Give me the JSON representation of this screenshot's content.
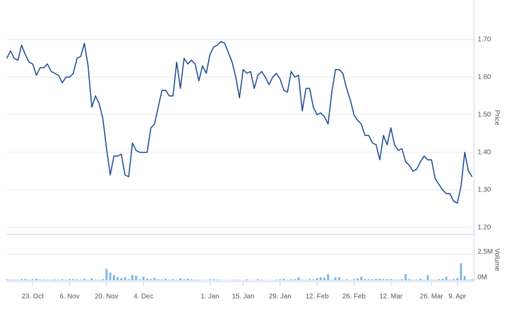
{
  "chart_data": {
    "type": "stock",
    "y_label": "Price",
    "y2_label": "Volume",
    "categories": [
      null,
      null,
      null,
      null,
      null,
      null,
      null,
      "23. Oct",
      null,
      null,
      null,
      null,
      null,
      null,
      null,
      null,
      null,
      "6. Nov",
      null,
      null,
      null,
      null,
      null,
      null,
      null,
      null,
      null,
      "20. Nov",
      null,
      null,
      null,
      null,
      null,
      null,
      null,
      null,
      null,
      "4. Dec",
      null,
      null,
      null,
      null,
      null,
      null,
      null,
      null,
      null,
      null,
      null,
      null,
      null,
      null,
      null,
      null,
      null,
      "1. Jan",
      null,
      null,
      null,
      null,
      null,
      null,
      null,
      null,
      "15. Jan",
      null,
      null,
      null,
      null,
      null,
      null,
      null,
      null,
      null,
      "29. Jan",
      null,
      null,
      null,
      null,
      null,
      null,
      null,
      null,
      null,
      "12. Feb",
      null,
      null,
      null,
      null,
      null,
      null,
      null,
      null,
      null,
      "26. Feb",
      null,
      null,
      null,
      null,
      null,
      null,
      null,
      null,
      null,
      "12. Mar",
      null,
      null,
      null,
      null,
      null,
      null,
      null,
      null,
      null,
      null,
      "26. Mar",
      null,
      null,
      null,
      null,
      null,
      null,
      "9. Apr",
      null,
      null,
      null,
      null
    ],
    "series": [
      {
        "type": "line",
        "color": "#1f4f96",
        "values": [
          1.65,
          1.67,
          1.65,
          1.645,
          1.685,
          1.66,
          1.64,
          1.635,
          1.605,
          1.625,
          1.625,
          1.635,
          1.615,
          1.61,
          1.605,
          1.585,
          1.6,
          1.6,
          1.61,
          1.65,
          1.655,
          1.69,
          1.63,
          1.52,
          1.55,
          1.53,
          1.49,
          1.41,
          1.34,
          1.39,
          1.39,
          1.395,
          1.34,
          1.335,
          1.425,
          1.405,
          1.4,
          1.4,
          1.4,
          1.465,
          1.475,
          1.52,
          1.565,
          1.565,
          1.55,
          1.55,
          1.64,
          1.57,
          1.65,
          1.635,
          1.645,
          1.635,
          1.59,
          1.63,
          1.61,
          1.66,
          1.68,
          1.685,
          1.695,
          1.69,
          1.665,
          1.64,
          1.6,
          1.545,
          1.62,
          1.61,
          1.615,
          1.57,
          1.605,
          1.615,
          1.6,
          1.58,
          1.6,
          1.61,
          1.595,
          1.565,
          1.56,
          1.615,
          1.6,
          1.605,
          1.51,
          1.57,
          1.57,
          1.52,
          1.5,
          1.505,
          1.495,
          1.475,
          1.56,
          1.62,
          1.62,
          1.61,
          1.57,
          1.54,
          1.5,
          1.485,
          1.475,
          1.445,
          1.445,
          1.425,
          1.42,
          1.38,
          1.445,
          1.42,
          1.465,
          1.42,
          1.405,
          1.41,
          1.375,
          1.365,
          1.35,
          1.355,
          1.375,
          1.39,
          1.38,
          1.38,
          1.33,
          1.315,
          1.3,
          1.29,
          1.29,
          1.27,
          1.265,
          1.31,
          1.4,
          1.35,
          1.335
        ]
      },
      {
        "type": "bar",
        "axis": "y2",
        "color": "#7cb5ec",
        "values": [
          0.08,
          0.05,
          0.06,
          0.04,
          0.1,
          0.12,
          0.05,
          0.1,
          0.15,
          0.08,
          0.06,
          0.05,
          0.05,
          0.08,
          0.04,
          0.1,
          0.05,
          0.1,
          0.12,
          0.08,
          0.05,
          0.15,
          0.05,
          0.18,
          0.05,
          0.05,
          0.1,
          1.1,
          0.75,
          0.5,
          0.3,
          0.2,
          0.3,
          0.1,
          0.5,
          0.45,
          0.1,
          0.35,
          0.15,
          0.1,
          0.25,
          0.1,
          0.08,
          0.15,
          0.05,
          0.1,
          0.05,
          0.2,
          0.1,
          0.15,
          0.1,
          0.05,
          0.05,
          0.03,
          0.04,
          0.1,
          0.1,
          0.05,
          0.03,
          0.02,
          0.03,
          0.02,
          0.05,
          0.04,
          0.03,
          0.08,
          0.03,
          0.02,
          0.1,
          0.04,
          0.03,
          0.02,
          0.02,
          0.05,
          0.1,
          0.15,
          0.05,
          0.08,
          0.1,
          0.3,
          0.05,
          0.03,
          0.1,
          0.08,
          0.2,
          0.3,
          0.25,
          0.6,
          0.05,
          0.3,
          0.3,
          0.05,
          0.08,
          0.03,
          0.1,
          0.2,
          0.35,
          0.1,
          0.1,
          0.1,
          0.12,
          0.15,
          0.12,
          0.1,
          0.1,
          0.05,
          0.05,
          0.1,
          0.6,
          0.1,
          0.05,
          0.05,
          0.15,
          0.05,
          0.5,
          0.05,
          0.05,
          0.1,
          0.15,
          0.35,
          0.05,
          0.1,
          0.2,
          1.65,
          0.4,
          0.05,
          0.08
        ]
      }
    ],
    "ylim": [
      1.187,
      1.796
    ],
    "yticks": [
      {
        "value": 1.2,
        "label": "1.20"
      },
      {
        "value": 1.3,
        "label": "1.30"
      },
      {
        "value": 1.4,
        "label": "1.40"
      },
      {
        "value": 1.5,
        "label": "1.50"
      },
      {
        "value": 1.6,
        "label": "1.60"
      },
      {
        "value": 1.7,
        "label": "1.70"
      }
    ],
    "y2lim": [
      0,
      4.3
    ],
    "y2ticks": [
      {
        "value": 0,
        "label": "0M"
      },
      {
        "value": 2.5,
        "label": "2.5M"
      }
    ],
    "grid": true
  }
}
